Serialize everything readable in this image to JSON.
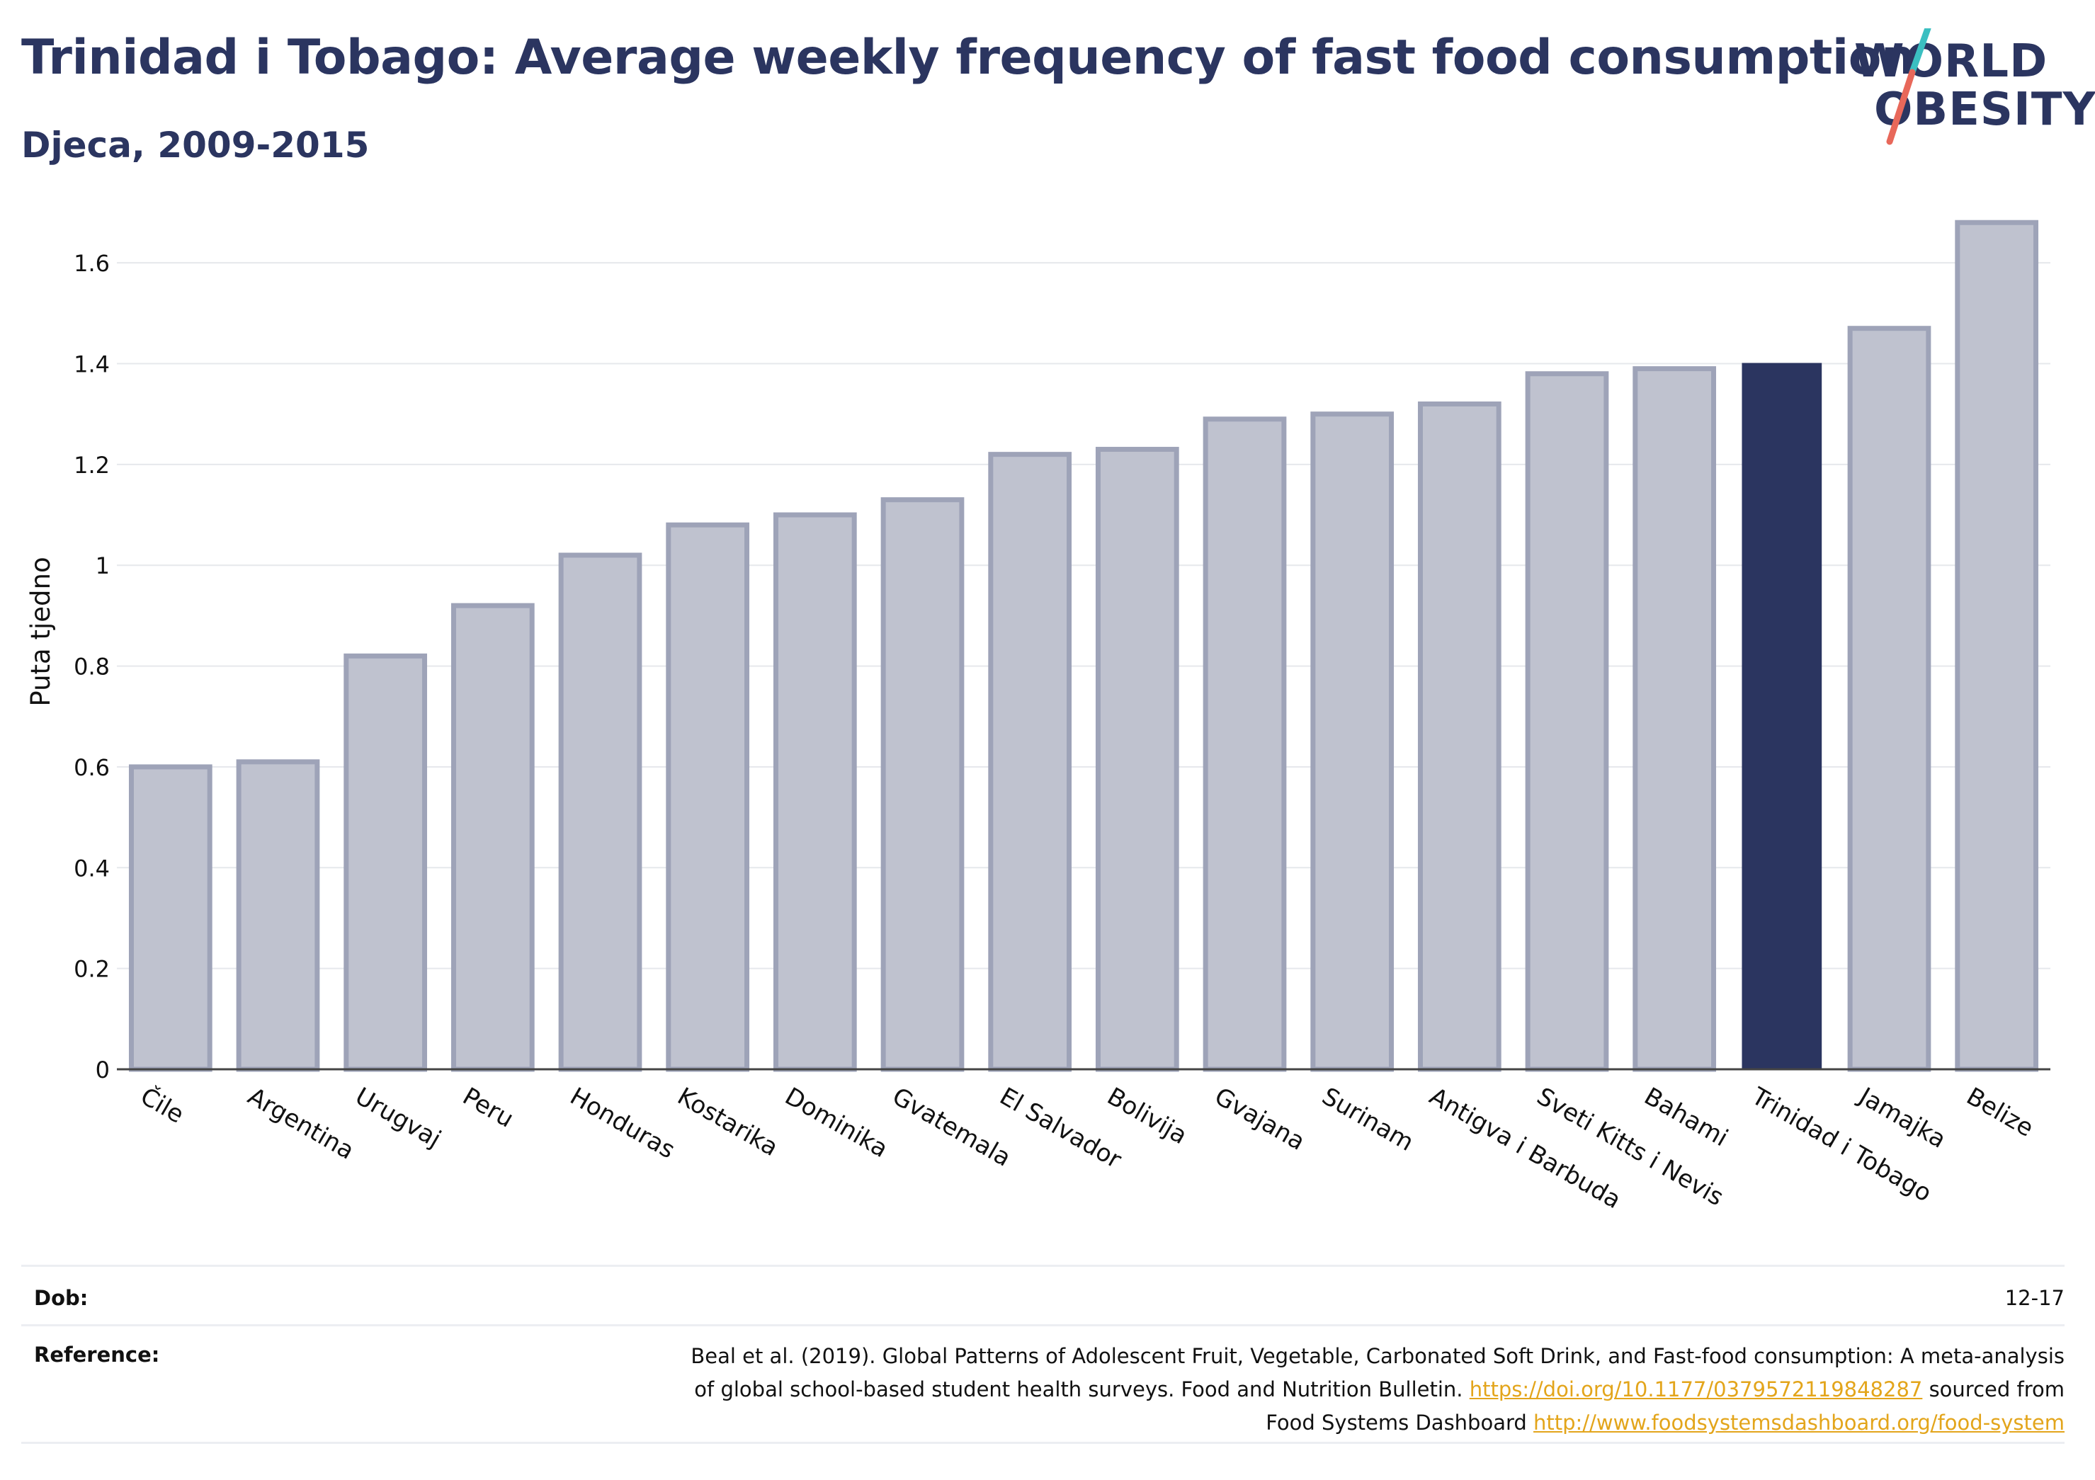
{
  "header": {
    "title": "Trinidad i Tobago: Average weekly frequency of fast food consumption",
    "subtitle": "Djeca, 2009-2015"
  },
  "logo": {
    "line1": "WORLD",
    "line2": "OBESITY",
    "colors": {
      "text": "#2b3560",
      "slash_top": "#3bbfc1",
      "slash_bottom": "#e8685a"
    }
  },
  "chart_data": {
    "type": "bar",
    "title": "Trinidad i Tobago: Average weekly frequency of fast food consumption",
    "subtitle": "Djeca, 2009-2015",
    "xlabel": "",
    "ylabel": "Puta tjedno",
    "ylim": [
      0,
      1.7
    ],
    "yticks": [
      0,
      0.2,
      0.4,
      0.6,
      0.8,
      1,
      1.2,
      1.4,
      1.6
    ],
    "ytick_labels": [
      "0",
      "0.2",
      "0.4",
      "0.6",
      "0.8",
      "1",
      "1.2",
      "1.4",
      "1.6"
    ],
    "grid": true,
    "categories": [
      "Čile",
      "Argentina",
      "Urugvaj",
      "Peru",
      "Honduras",
      "Kostarika",
      "Dominika",
      "Gvatemala",
      "El Salvador",
      "Bolivija",
      "Gvajana",
      "Surinam",
      "Antigva i Barbuda",
      "Sveti Kitts i Nevis",
      "Bahami",
      "Trinidad i Tobago",
      "Jamajka",
      "Belize"
    ],
    "values": [
      0.6,
      0.61,
      0.82,
      0.92,
      1.02,
      1.08,
      1.1,
      1.13,
      1.22,
      1.23,
      1.29,
      1.3,
      1.32,
      1.38,
      1.39,
      1.4,
      1.47,
      1.68
    ],
    "highlight": "Trinidad i Tobago",
    "colors": {
      "bar": "#bfc2cf",
      "bar_border": "#9ea3b8",
      "highlight": "#2b3560",
      "grid": "#e6e8ec",
      "axis": "#444444"
    }
  },
  "footer": {
    "age_label": "Dob:",
    "age_value": "12-17",
    "reference_label": "Reference:",
    "reference_text_1": "Beal et al. (2019). Global Patterns of Adolescent Fruit, Vegetable, Carbonated Soft Drink, and Fast-food consumption: A meta-analysis",
    "reference_text_2": "of global school-based student health surveys. Food and Nutrition Bulletin. ",
    "reference_link_1": "https://doi.org/10.1177/0379572119848287",
    "reference_text_3": " sourced from",
    "reference_text_4": "Food Systems Dashboard ",
    "reference_link_2": "http://www.foodsystemsdashboard.org/food-system"
  }
}
